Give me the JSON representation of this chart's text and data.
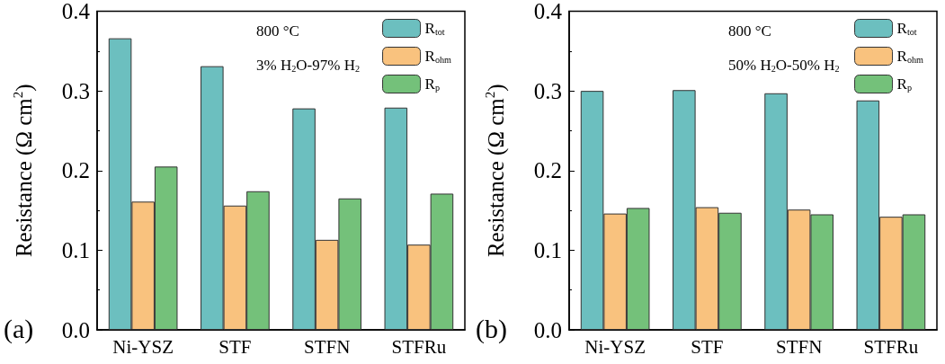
{
  "chart_data": [
    {
      "type": "bar",
      "ylabel": "Resistance (Ω cm$^{2}$)",
      "categories": [
        "Ni-YSZ",
        "STF",
        "STFN",
        "STFRu"
      ],
      "series": [
        {
          "name": "R$_{tot}$",
          "color": "#6cbfbf",
          "values": [
            0.366,
            0.331,
            0.278,
            0.279
          ]
        },
        {
          "name": "R$_{ohm}$",
          "color": "#f9c27e",
          "values": [
            0.161,
            0.156,
            0.113,
            0.107
          ]
        },
        {
          "name": "R$_{p}$",
          "color": "#74c17a",
          "values": [
            0.205,
            0.174,
            0.165,
            0.171
          ]
        }
      ],
      "ylim": [
        0,
        0.4
      ],
      "yticks": [
        {
          "value": 0,
          "label": "0.0"
        },
        0.1,
        0.2,
        0.3,
        0.4
      ],
      "grid": false,
      "legend": "top right",
      "annotations": [
        "800 °C",
        "3% H$_{2}$O-97% H$_{2}$",
        "(a)"
      ]
    },
    {
      "type": "bar",
      "ylabel": "Resistance (Ω cm$^{2}$)",
      "categories": [
        "Ni-YSZ",
        "STF",
        "STFN",
        "STFRu"
      ],
      "series": [
        {
          "name": "R$_{tot}$",
          "color": "#6cbfbf",
          "values": [
            0.3,
            0.301,
            0.297,
            0.288
          ]
        },
        {
          "name": "R$_{ohm}$",
          "color": "#f9c27e",
          "values": [
            0.146,
            0.154,
            0.151,
            0.142
          ]
        },
        {
          "name": "R$_{p}$",
          "color": "#74c17a",
          "values": [
            0.153,
            0.147,
            0.145,
            0.145
          ]
        }
      ],
      "ylim": [
        0,
        0.4
      ],
      "yticks": [
        {
          "value": 0,
          "label": "0.0"
        },
        0.1,
        0.2,
        0.3,
        0.4
      ],
      "grid": false,
      "legend": "top right",
      "annotations": [
        "800 °C",
        "50% H$_{2}$O-50% H$_{2}$",
        "(b)"
      ]
    }
  ]
}
